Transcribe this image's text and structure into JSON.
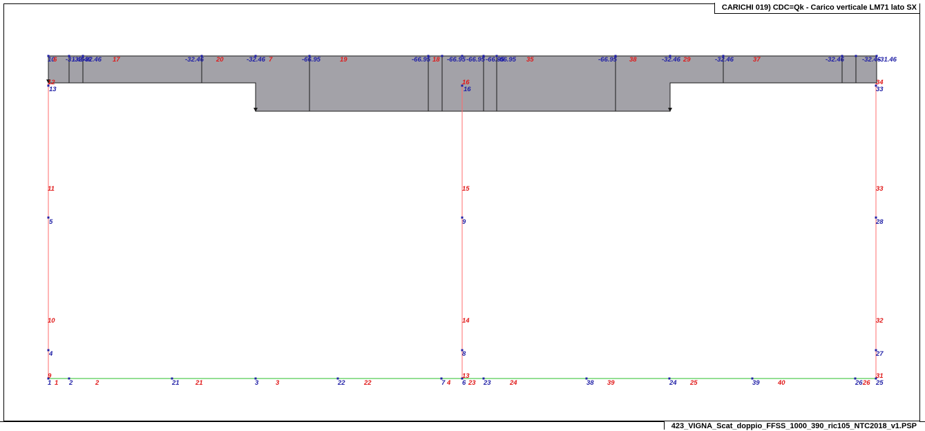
{
  "header": {
    "title": "CARICHI  019) CDC=Qk - Carico verticale LM71 lato SX"
  },
  "footer": {
    "filename": "423_VIGNA_Scat_doppio_FFSS_1000_390_ric105_NTC2018_v1.PSP"
  },
  "colors": {
    "load_fill": "#a3a2a8",
    "load_stroke": "#1a1a1a",
    "column": "#ff6b6b",
    "base": "#55cc55",
    "node_label": "#1f1fa6",
    "element_label": "#e01818"
  },
  "load_value_labels": [
    "-31.46",
    "-32.46",
    "-32.46",
    "-32.46",
    "-32.46",
    "-66.95",
    "-66.95",
    "-66.95",
    "-66.95",
    "-66.95",
    "-66.95",
    "-66.95",
    "-32.46",
    "-32.46",
    "-32.46",
    "-32.46",
    "-31.46"
  ],
  "node_labels": [
    "10",
    "13",
    "5",
    "4",
    "1",
    "2",
    "21",
    "3",
    "22",
    "7",
    "6",
    "16",
    "9",
    "8",
    "23",
    "38",
    "24",
    "39",
    "26",
    "25",
    "27",
    "28",
    "33"
  ],
  "element_labels": [
    "6",
    "17",
    "20",
    "7",
    "19",
    "18",
    "35",
    "38",
    "29",
    "37",
    "12",
    "11",
    "10",
    "9",
    "1",
    "2",
    "21",
    "3",
    "22",
    "4",
    "13",
    "14",
    "15",
    "16",
    "23",
    "24",
    "39",
    "25",
    "40",
    "26",
    "31",
    "32",
    "33",
    "34"
  ]
}
